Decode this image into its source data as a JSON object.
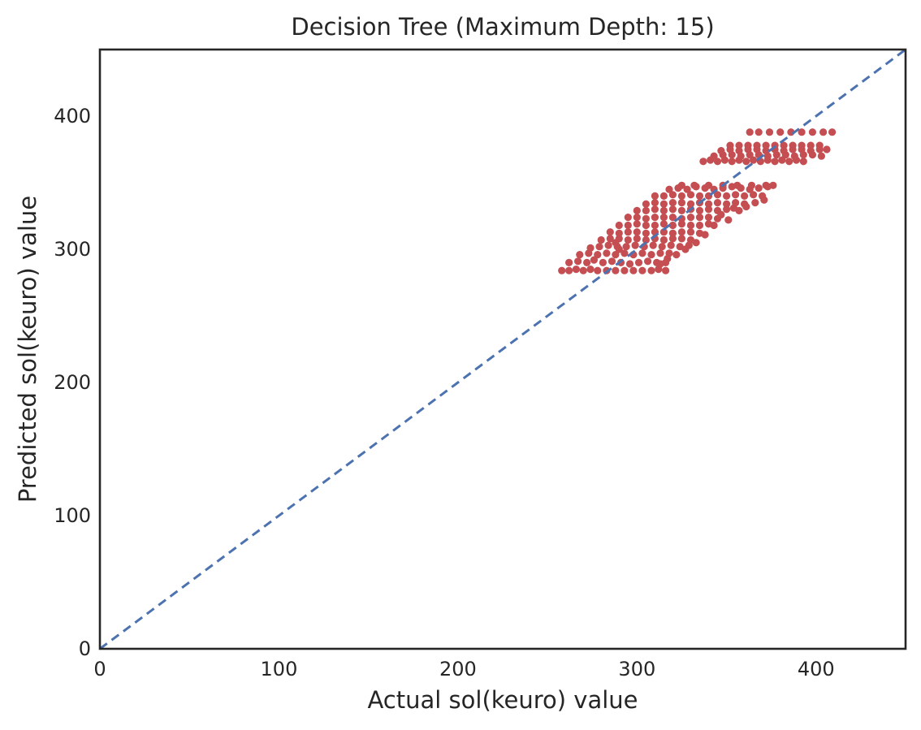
{
  "chart_data": {
    "type": "scatter",
    "title": "Decision Tree (Maximum Depth: 15)",
    "xlabel": "Actual sol(keuro) value",
    "ylabel": "Predicted sol(keuro) value",
    "xlim": [
      0,
      450
    ],
    "ylim": [
      0,
      450
    ],
    "xticks": [
      "0",
      "100",
      "200",
      "300",
      "400"
    ],
    "yticks": [
      "0",
      "100",
      "200",
      "300",
      "400"
    ],
    "grid": false,
    "legend": "none",
    "reference_line": {
      "description": "y = x",
      "style": "dashed",
      "color": "#4c72b0",
      "points": [
        [
          0,
          0
        ],
        [
          450,
          450
        ]
      ]
    },
    "series": [
      {
        "color": "#c44e52",
        "points": [
          [
            258,
            284
          ],
          [
            262,
            284
          ],
          [
            266,
            285
          ],
          [
            270,
            284
          ],
          [
            274,
            285
          ],
          [
            278,
            284
          ],
          [
            283,
            284
          ],
          [
            288,
            284
          ],
          [
            293,
            284
          ],
          [
            298,
            284
          ],
          [
            303,
            284
          ],
          [
            308,
            284
          ],
          [
            312,
            285
          ],
          [
            316,
            284
          ],
          [
            262,
            290
          ],
          [
            267,
            291
          ],
          [
            272,
            290
          ],
          [
            276,
            292
          ],
          [
            281,
            290
          ],
          [
            286,
            291
          ],
          [
            291,
            290
          ],
          [
            296,
            289
          ],
          [
            301,
            290
          ],
          [
            306,
            291
          ],
          [
            311,
            290
          ],
          [
            316,
            290
          ],
          [
            268,
            296
          ],
          [
            273,
            297
          ],
          [
            278,
            296
          ],
          [
            283,
            297
          ],
          [
            288,
            296
          ],
          [
            293,
            297
          ],
          [
            298,
            296
          ],
          [
            303,
            297
          ],
          [
            308,
            296
          ],
          [
            313,
            297
          ],
          [
            318,
            297
          ],
          [
            274,
            301
          ],
          [
            279,
            302
          ],
          [
            284,
            303
          ],
          [
            289,
            302
          ],
          [
            294,
            302
          ],
          [
            299,
            303
          ],
          [
            304,
            302
          ],
          [
            309,
            303
          ],
          [
            314,
            302
          ],
          [
            319,
            303
          ],
          [
            324,
            302
          ],
          [
            329,
            303
          ],
          [
            280,
            307
          ],
          [
            285,
            308
          ],
          [
            290,
            308
          ],
          [
            295,
            307
          ],
          [
            300,
            308
          ],
          [
            305,
            307
          ],
          [
            310,
            308
          ],
          [
            315,
            307
          ],
          [
            320,
            308
          ],
          [
            325,
            308
          ],
          [
            330,
            307
          ],
          [
            285,
            313
          ],
          [
            290,
            312
          ],
          [
            295,
            313
          ],
          [
            300,
            313
          ],
          [
            305,
            312
          ],
          [
            310,
            313
          ],
          [
            315,
            313
          ],
          [
            320,
            312
          ],
          [
            325,
            313
          ],
          [
            330,
            313
          ],
          [
            335,
            312
          ],
          [
            290,
            318
          ],
          [
            295,
            318
          ],
          [
            300,
            319
          ],
          [
            305,
            318
          ],
          [
            310,
            318
          ],
          [
            315,
            319
          ],
          [
            320,
            318
          ],
          [
            325,
            319
          ],
          [
            330,
            318
          ],
          [
            335,
            318
          ],
          [
            340,
            319
          ],
          [
            295,
            324
          ],
          [
            300,
            324
          ],
          [
            305,
            323
          ],
          [
            310,
            324
          ],
          [
            315,
            324
          ],
          [
            320,
            324
          ],
          [
            325,
            323
          ],
          [
            330,
            324
          ],
          [
            335,
            324
          ],
          [
            340,
            324
          ],
          [
            345,
            323
          ],
          [
            300,
            329
          ],
          [
            305,
            329
          ],
          [
            310,
            330
          ],
          [
            315,
            329
          ],
          [
            320,
            330
          ],
          [
            325,
            329
          ],
          [
            330,
            330
          ],
          [
            335,
            329
          ],
          [
            340,
            330
          ],
          [
            345,
            329
          ],
          [
            350,
            330
          ],
          [
            305,
            334
          ],
          [
            310,
            335
          ],
          [
            315,
            334
          ],
          [
            320,
            335
          ],
          [
            325,
            335
          ],
          [
            330,
            334
          ],
          [
            335,
            335
          ],
          [
            340,
            334
          ],
          [
            345,
            335
          ],
          [
            350,
            334
          ],
          [
            355,
            335
          ],
          [
            360,
            334
          ],
          [
            310,
            340
          ],
          [
            315,
            340
          ],
          [
            320,
            341
          ],
          [
            325,
            340
          ],
          [
            330,
            341
          ],
          [
            335,
            340
          ],
          [
            340,
            340
          ],
          [
            345,
            341
          ],
          [
            350,
            340
          ],
          [
            355,
            341
          ],
          [
            360,
            340
          ],
          [
            365,
            341
          ],
          [
            370,
            340
          ],
          [
            318,
            345
          ],
          [
            323,
            346
          ],
          [
            328,
            345
          ],
          [
            333,
            347
          ],
          [
            338,
            346
          ],
          [
            343,
            345
          ],
          [
            348,
            346
          ],
          [
            353,
            347
          ],
          [
            358,
            346
          ],
          [
            363,
            345
          ],
          [
            368,
            346
          ],
          [
            373,
            347
          ],
          [
            325,
            348
          ],
          [
            332,
            348
          ],
          [
            340,
            348
          ],
          [
            348,
            348
          ],
          [
            356,
            348
          ],
          [
            364,
            348
          ],
          [
            372,
            348
          ],
          [
            376,
            348
          ],
          [
            354,
            331
          ],
          [
            357,
            329
          ],
          [
            361,
            332
          ],
          [
            366,
            335
          ],
          [
            371,
            337
          ],
          [
            347,
            326
          ],
          [
            351,
            322
          ],
          [
            343,
            318
          ],
          [
            338,
            311
          ],
          [
            333,
            305
          ],
          [
            327,
            300
          ],
          [
            322,
            296
          ],
          [
            317,
            293
          ],
          [
            313,
            289
          ],
          [
            290,
            300
          ],
          [
            288,
            305
          ],
          [
            337,
            366
          ],
          [
            341,
            367
          ],
          [
            345,
            366
          ],
          [
            349,
            367
          ],
          [
            353,
            366
          ],
          [
            357,
            367
          ],
          [
            361,
            366
          ],
          [
            365,
            367
          ],
          [
            369,
            366
          ],
          [
            373,
            367
          ],
          [
            377,
            366
          ],
          [
            381,
            367
          ],
          [
            385,
            366
          ],
          [
            389,
            367
          ],
          [
            393,
            366
          ],
          [
            343,
            370
          ],
          [
            348,
            371
          ],
          [
            353,
            371
          ],
          [
            358,
            370
          ],
          [
            363,
            371
          ],
          [
            368,
            371
          ],
          [
            373,
            370
          ],
          [
            378,
            371
          ],
          [
            383,
            371
          ],
          [
            388,
            370
          ],
          [
            393,
            371
          ],
          [
            398,
            371
          ],
          [
            403,
            370
          ],
          [
            347,
            374
          ],
          [
            352,
            375
          ],
          [
            357,
            374
          ],
          [
            362,
            375
          ],
          [
            367,
            375
          ],
          [
            372,
            374
          ],
          [
            377,
            375
          ],
          [
            382,
            374
          ],
          [
            387,
            375
          ],
          [
            392,
            375
          ],
          [
            397,
            374
          ],
          [
            402,
            375
          ],
          [
            406,
            375
          ],
          [
            352,
            378
          ],
          [
            357,
            378
          ],
          [
            362,
            378
          ],
          [
            367,
            378
          ],
          [
            372,
            378
          ],
          [
            377,
            378
          ],
          [
            382,
            378
          ],
          [
            387,
            378
          ],
          [
            392,
            378
          ],
          [
            397,
            378
          ],
          [
            402,
            378
          ],
          [
            363,
            388
          ],
          [
            368,
            388
          ],
          [
            374,
            388
          ],
          [
            380,
            388
          ],
          [
            386,
            388
          ],
          [
            392,
            388
          ],
          [
            398,
            388
          ],
          [
            404,
            388
          ],
          [
            409,
            388
          ]
        ]
      }
    ]
  }
}
